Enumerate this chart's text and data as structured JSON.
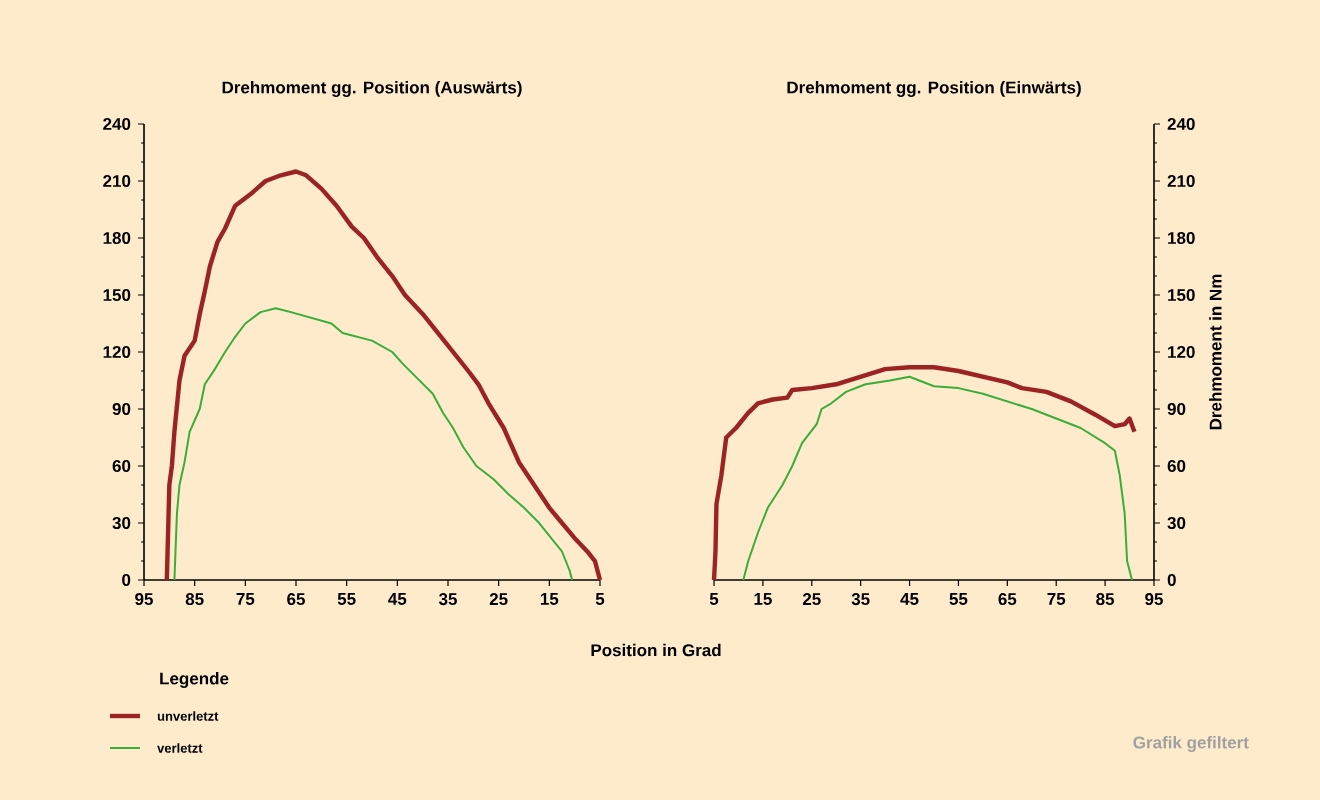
{
  "chart_data": [
    {
      "type": "line",
      "title": "Drehmoment gg. Position (Auswärts)",
      "xlabel": "Position in Grad",
      "legend_title": "Legende",
      "legend": "bottom left",
      "xlim": [
        95,
        5
      ],
      "xticks": [
        95,
        85,
        75,
        65,
        55,
        45,
        35,
        25,
        15,
        5
      ],
      "ylim": [
        0,
        240
      ],
      "yticks": [
        0,
        30,
        60,
        90,
        120,
        150,
        180,
        210,
        240
      ],
      "series": [
        {
          "name": "unverletzt",
          "color": "#9b2423",
          "x": [
            90.5,
            90,
            89.5,
            89,
            88,
            87,
            85,
            84,
            83,
            82,
            80.5,
            79,
            77,
            74,
            71,
            68,
            65,
            63,
            60,
            57,
            54,
            51.6,
            49,
            46,
            43.5,
            40,
            37,
            34,
            31,
            29,
            27,
            24,
            21,
            18,
            15,
            12.5,
            10,
            7.5,
            6,
            5.5,
            5
          ],
          "values": [
            0,
            50,
            60,
            78,
            105,
            118,
            126,
            140,
            152,
            165,
            178,
            185,
            197,
            203,
            210,
            213,
            215,
            213,
            206,
            197,
            186,
            180,
            170,
            160,
            150,
            140,
            130,
            120,
            110,
            103,
            93,
            80,
            62,
            50,
            38,
            30,
            22,
            15,
            10,
            5,
            0
          ]
        },
        {
          "name": "verletzt",
          "color": "#3aad3a",
          "x": [
            89,
            88.5,
            88,
            87,
            86,
            84,
            83,
            81,
            79,
            77,
            75,
            72,
            69,
            66,
            62,
            58,
            55.8,
            50,
            46,
            44,
            41,
            38,
            36,
            34,
            32,
            29.4,
            26,
            23,
            20,
            17,
            14,
            12.5,
            11,
            10.5
          ],
          "values": [
            0,
            35,
            50,
            62,
            78,
            90,
            103,
            111,
            120,
            128,
            135,
            141,
            143,
            141,
            138,
            135,
            130,
            126,
            120,
            114,
            106,
            98,
            88,
            80,
            70,
            60,
            53,
            45,
            38,
            30,
            20,
            15,
            5,
            0
          ]
        }
      ]
    },
    {
      "type": "line",
      "title": "Drehmoment gg. Position (Einwärts)",
      "ylabel": "Drehmoment in Nm",
      "annotations": [
        "Grafik gefiltert"
      ],
      "xlim": [
        5,
        95
      ],
      "xticks": [
        5,
        15,
        25,
        35,
        45,
        55,
        65,
        75,
        85,
        95
      ],
      "ylim": [
        0,
        240
      ],
      "yticks": [
        0,
        30,
        60,
        90,
        120,
        150,
        180,
        210,
        240
      ],
      "series": [
        {
          "color": "#9b2423",
          "x": [
            5,
            5.3,
            5.5,
            6.5,
            7.5,
            9.5,
            12,
            14,
            17,
            20,
            21,
            25,
            30,
            35,
            40,
            45,
            50,
            55,
            60,
            65,
            68,
            73,
            78,
            83,
            87,
            89,
            90,
            91
          ],
          "values": [
            0,
            15,
            40,
            55,
            75,
            80,
            88,
            93,
            95,
            96,
            100,
            101,
            103,
            107,
            111,
            112,
            112,
            110,
            107,
            104,
            101,
            99,
            94,
            87,
            81,
            82,
            85,
            78
          ]
        },
        {
          "color": "#3aad3a",
          "x": [
            11,
            12,
            14,
            16,
            19,
            21,
            23,
            26,
            27,
            29,
            32,
            36,
            41,
            45,
            50,
            55,
            60,
            65,
            70,
            75,
            80,
            85,
            87,
            88,
            89,
            89.5,
            90.5
          ],
          "values": [
            0,
            10,
            25,
            38,
            50,
            60,
            72,
            82,
            90,
            93,
            99,
            103,
            105,
            107,
            102,
            101,
            98,
            94,
            90,
            85,
            80,
            72,
            68,
            55,
            35,
            10,
            0
          ]
        }
      ]
    }
  ]
}
